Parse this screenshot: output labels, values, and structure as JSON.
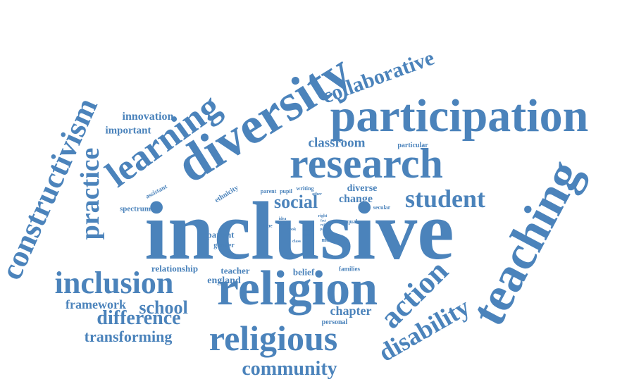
{
  "color": "#4b83bb",
  "words": [
    {
      "name": "inclusive",
      "text": "inclusive"
    },
    {
      "name": "diversity",
      "text": "diversity"
    },
    {
      "name": "participation",
      "text": "participation"
    },
    {
      "name": "research",
      "text": "research"
    },
    {
      "name": "teaching",
      "text": "teaching"
    },
    {
      "name": "religion",
      "text": "religion"
    },
    {
      "name": "religious",
      "text": "religious"
    },
    {
      "name": "learning",
      "text": "learning"
    },
    {
      "name": "constructivism",
      "text": "constructivism"
    },
    {
      "name": "inclusion",
      "text": "inclusion"
    },
    {
      "name": "action",
      "text": "action"
    },
    {
      "name": "disability",
      "text": "disability"
    },
    {
      "name": "collaborative",
      "text": "collaborative"
    },
    {
      "name": "student",
      "text": "student"
    },
    {
      "name": "practice",
      "text": "practice"
    },
    {
      "name": "community",
      "text": "community"
    },
    {
      "name": "difference",
      "text": "difference"
    },
    {
      "name": "social",
      "text": "social"
    },
    {
      "name": "classroom",
      "text": "classroom"
    },
    {
      "name": "school",
      "text": "school"
    },
    {
      "name": "transforming",
      "text": "transforming"
    },
    {
      "name": "framework",
      "text": "framework"
    },
    {
      "name": "chapter",
      "text": "chapter"
    },
    {
      "name": "change",
      "text": "change"
    },
    {
      "name": "innovation",
      "text": "innovation"
    },
    {
      "name": "important",
      "text": "important"
    },
    {
      "name": "diverse",
      "text": "diverse"
    },
    {
      "name": "england",
      "text": "england"
    },
    {
      "name": "relationship",
      "text": "relationship"
    },
    {
      "name": "teacher",
      "text": "teacher"
    },
    {
      "name": "belief",
      "text": "belief"
    },
    {
      "name": "patient",
      "text": "patient"
    },
    {
      "name": "spectrum",
      "text": "spectrum"
    },
    {
      "name": "assistant",
      "text": "assistant"
    },
    {
      "name": "ethnicity",
      "text": "ethnicity"
    },
    {
      "name": "particular",
      "text": "particular"
    },
    {
      "name": "personal",
      "text": "personal"
    },
    {
      "name": "families",
      "text": "families"
    },
    {
      "name": "gender",
      "text": "gender"
    },
    {
      "name": "parent",
      "text": "parent"
    },
    {
      "name": "pupil",
      "text": "pupil"
    },
    {
      "name": "writing",
      "text": "writing"
    },
    {
      "name": "secular",
      "text": "secular"
    },
    {
      "name": "equal",
      "text": "equal"
    },
    {
      "name": "many",
      "text": "many"
    },
    {
      "name": "time",
      "text": "time"
    },
    {
      "name": "idea",
      "text": "idea"
    },
    {
      "name": "way",
      "text": "way"
    },
    {
      "name": "other",
      "text": "other"
    },
    {
      "name": "book",
      "text": "book"
    },
    {
      "name": "slow",
      "text": "slow"
    },
    {
      "name": "class",
      "text": "class"
    },
    {
      "name": "right",
      "text": "right"
    },
    {
      "name": "fact",
      "text": "fact"
    },
    {
      "name": "role",
      "text": "role"
    },
    {
      "name": "part",
      "text": "part"
    },
    {
      "name": "local",
      "text": "local"
    }
  ]
}
